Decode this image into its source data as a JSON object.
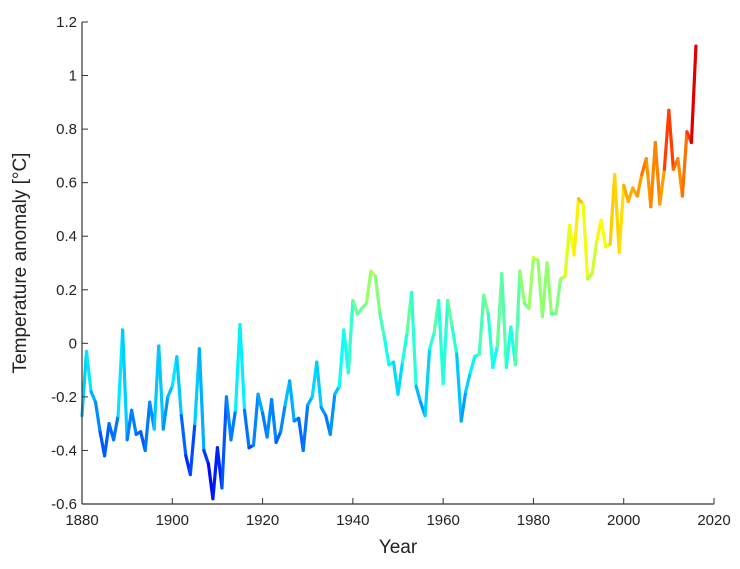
{
  "chart_data": {
    "type": "line",
    "title": "",
    "xlabel": "Year",
    "ylabel": "Temperature anomaly [°C]",
    "xlim": [
      1880,
      2020
    ],
    "ylim": [
      -0.6,
      1.2
    ],
    "xticks": [
      "1880",
      "1900",
      "1920",
      "1940",
      "1960",
      "1980",
      "2000",
      "2020"
    ],
    "yticks": [
      "-0.6",
      "-0.4",
      "-0.2",
      "0",
      "0.2",
      "0.4",
      "0.6",
      "0.8",
      "1",
      "1.2"
    ],
    "grid": false,
    "colormap": "jet (colored by anomaly value)",
    "x_start": 1880,
    "values": [
      -0.27,
      -0.03,
      -0.18,
      -0.22,
      -0.33,
      -0.42,
      -0.3,
      -0.36,
      -0.27,
      0.05,
      -0.36,
      -0.25,
      -0.34,
      -0.33,
      -0.4,
      -0.22,
      -0.32,
      -0.01,
      -0.32,
      -0.2,
      -0.16,
      -0.05,
      -0.27,
      -0.42,
      -0.49,
      -0.3,
      -0.02,
      -0.4,
      -0.45,
      -0.58,
      -0.39,
      -0.54,
      -0.2,
      -0.36,
      -0.25,
      0.07,
      -0.25,
      -0.39,
      -0.38,
      -0.19,
      -0.26,
      -0.35,
      -0.21,
      -0.37,
      -0.33,
      -0.23,
      -0.14,
      -0.29,
      -0.28,
      -0.4,
      -0.23,
      -0.2,
      -0.07,
      -0.24,
      -0.27,
      -0.34,
      -0.19,
      -0.16,
      0.05,
      -0.11,
      0.16,
      0.11,
      0.13,
      0.15,
      0.27,
      0.25,
      0.11,
      0.02,
      -0.08,
      -0.07,
      -0.19,
      -0.07,
      0.04,
      0.19,
      -0.16,
      -0.22,
      -0.27,
      -0.02,
      0.04,
      0.16,
      -0.15,
      0.16,
      0.06,
      -0.04,
      -0.29,
      -0.18,
      -0.11,
      -0.05,
      -0.04,
      0.18,
      0.11,
      -0.09,
      -0.01,
      0.26,
      -0.09,
      0.06,
      -0.08,
      0.27,
      0.15,
      0.13,
      0.32,
      0.31,
      0.1,
      0.3,
      0.11,
      0.11,
      0.24,
      0.25,
      0.44,
      0.33,
      0.54,
      0.52,
      0.24,
      0.26,
      0.38,
      0.46,
      0.36,
      0.37,
      0.63,
      0.34,
      0.59,
      0.53,
      0.58,
      0.55,
      0.63,
      0.69,
      0.51,
      0.75,
      0.52,
      0.65,
      0.87,
      0.65,
      0.69,
      0.55,
      0.79,
      0.75,
      1.11
    ]
  }
}
